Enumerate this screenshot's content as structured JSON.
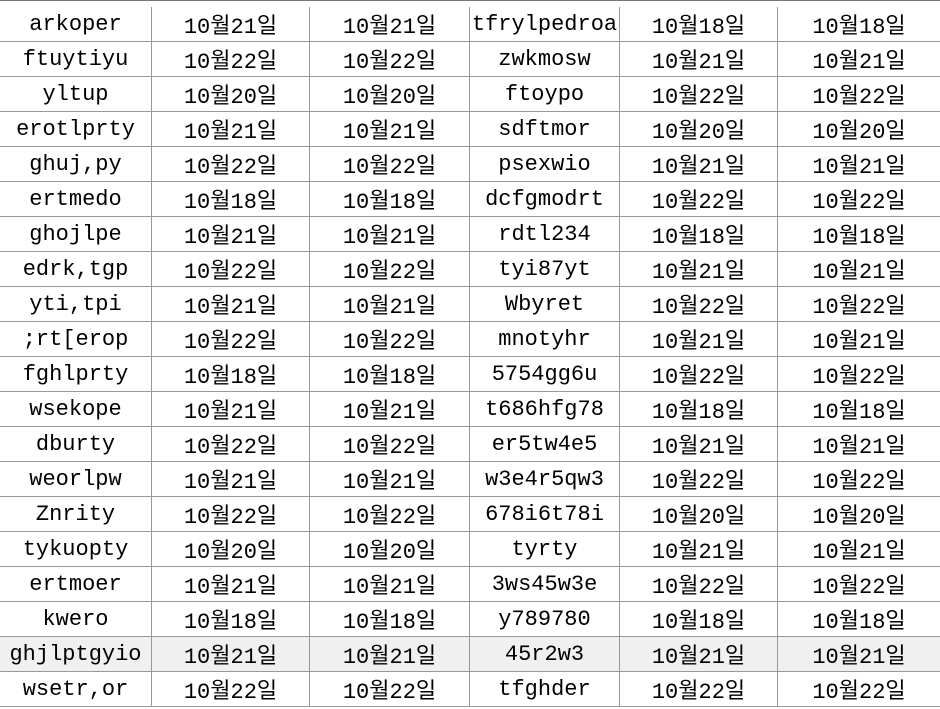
{
  "table": {
    "rows": [
      [
        "arkoper",
        "10월21일",
        "10월21일",
        "tfrylpedroa",
        "10월18일",
        "10월18일"
      ],
      [
        "ftuytiyu",
        "10월22일",
        "10월22일",
        "zwkmosw",
        "10월21일",
        "10월21일"
      ],
      [
        "yltup",
        "10월20일",
        "10월20일",
        "ftoypo",
        "10월22일",
        "10월22일"
      ],
      [
        "erotlprty",
        "10월21일",
        "10월21일",
        "sdftmor",
        "10월20일",
        "10월20일"
      ],
      [
        "ghuj,py",
        "10월22일",
        "10월22일",
        "psexwio",
        "10월21일",
        "10월21일"
      ],
      [
        "ertmedo",
        "10월18일",
        "10월18일",
        "dcfgmodrt",
        "10월22일",
        "10월22일"
      ],
      [
        "ghojlpe",
        "10월21일",
        "10월21일",
        "rdtl234",
        "10월18일",
        "10월18일"
      ],
      [
        "edrk,tgp",
        "10월22일",
        "10월22일",
        "tyi87yt",
        "10월21일",
        "10월21일"
      ],
      [
        "yti,tpi",
        "10월21일",
        "10월21일",
        "Wbyret",
        "10월22일",
        "10월22일"
      ],
      [
        ";rt[erop",
        "10월22일",
        "10월22일",
        "mnotyhr",
        "10월21일",
        "10월21일"
      ],
      [
        "fghlprty",
        "10월18일",
        "10월18일",
        "5754gg6u",
        "10월22일",
        "10월22일"
      ],
      [
        "wsekope",
        "10월21일",
        "10월21일",
        "t686hfg78",
        "10월18일",
        "10월18일"
      ],
      [
        "dburty",
        "10월22일",
        "10월22일",
        "er5tw4e5",
        "10월21일",
        "10월21일"
      ],
      [
        "weorlpw",
        "10월21일",
        "10월21일",
        "w3e4r5qw3",
        "10월22일",
        "10월22일"
      ],
      [
        "Znrity",
        "10월22일",
        "10월22일",
        "678i6t78i",
        "10월20일",
        "10월20일"
      ],
      [
        "tykuopty",
        "10월20일",
        "10월20일",
        "tyrty",
        "10월21일",
        "10월21일"
      ],
      [
        "ertmoer",
        "10월21일",
        "10월21일",
        "3ws45w3e",
        "10월22일",
        "10월22일"
      ],
      [
        "kwero",
        "10월18일",
        "10월18일",
        "y789780",
        "10월18일",
        "10월18일"
      ],
      [
        "ghjlptgyio",
        "10월21일",
        "10월21일",
        "45r2w3",
        "10월21일",
        "10월21일"
      ],
      [
        "wsetr,or",
        "10월22일",
        "10월22일",
        "tfghder",
        "10월22일",
        "10월22일"
      ]
    ]
  }
}
